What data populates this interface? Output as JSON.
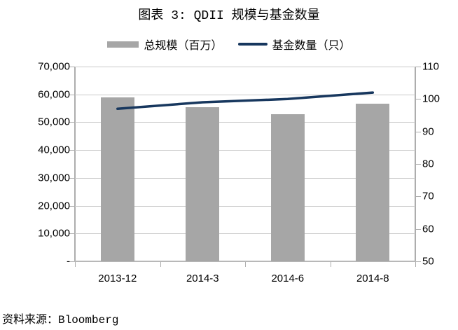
{
  "title": "图表 3: QDII 规模与基金数量",
  "source": "资料来源：Bloomberg",
  "legend": {
    "items": [
      {
        "label": "总规模（百万）",
        "type": "bar",
        "color": "#a6a6a6"
      },
      {
        "label": "基金数量（只）",
        "type": "line",
        "color": "#17375e"
      }
    ]
  },
  "chart_data": {
    "type": "bar",
    "combo": "bar+line",
    "title": "图表 3: QDII 规模与基金数量",
    "categories": [
      "2013-12",
      "2014-3",
      "2014-6",
      "2014-8"
    ],
    "series": [
      {
        "name": "总规模（百万）",
        "type": "bar",
        "axis": "left",
        "color": "#a6a6a6",
        "values": [
          59000,
          55400,
          53000,
          56600
        ]
      },
      {
        "name": "基金数量（只）",
        "type": "line",
        "axis": "right",
        "color": "#17375e",
        "values": [
          97,
          99,
          100,
          102
        ]
      }
    ],
    "left_axis": {
      "min": 0,
      "max": 70000,
      "tick_labels": [
        "70,000",
        "60,000",
        "50,000",
        "40,000",
        "30,000",
        "20,000",
        "10,000",
        "-"
      ]
    },
    "right_axis": {
      "min": 50,
      "max": 110,
      "tick_labels": [
        "110",
        "100",
        "90",
        "80",
        "70",
        "60",
        "50"
      ]
    },
    "grid": true,
    "legend_position": "top",
    "gridline_color": "#c9c9c9"
  }
}
